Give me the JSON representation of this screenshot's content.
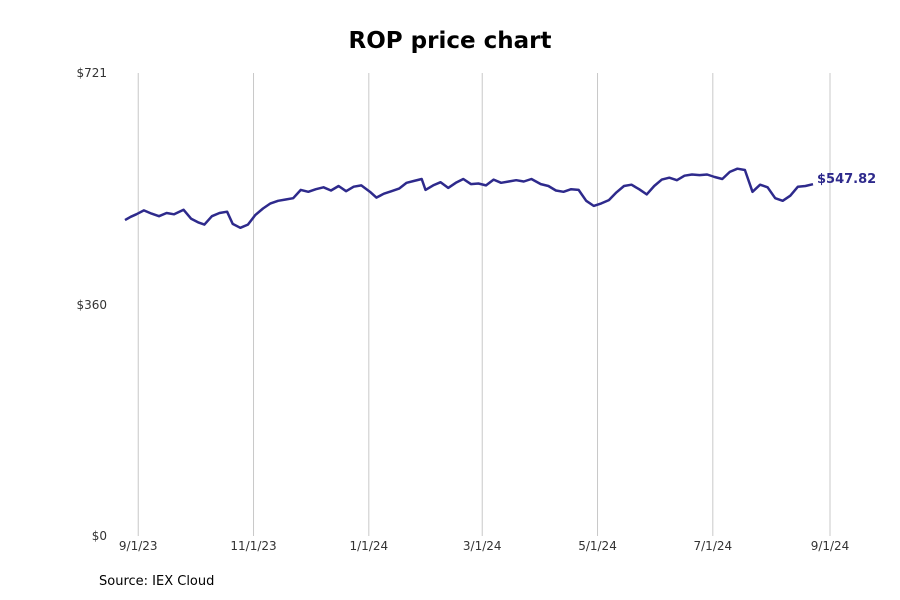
{
  "chart_data": {
    "type": "line",
    "title": "ROP price chart",
    "xlabel": "",
    "ylabel": "",
    "source": "Source: IEX Cloud",
    "x_range": [
      "2023-08-25",
      "2024-09-01"
    ],
    "ylim": [
      0,
      721
    ],
    "y_ticks": [
      {
        "value": 0,
        "label": "$0"
      },
      {
        "value": 360,
        "label": "$360"
      },
      {
        "value": 721,
        "label": "$721"
      }
    ],
    "x_ticks": [
      {
        "date": "2023-09-01",
        "label": "9/1/23"
      },
      {
        "date": "2023-11-01",
        "label": "11/1/23"
      },
      {
        "date": "2024-01-01",
        "label": "1/1/24"
      },
      {
        "date": "2024-03-01",
        "label": "3/1/24"
      },
      {
        "date": "2024-05-01",
        "label": "5/1/24"
      },
      {
        "date": "2024-07-01",
        "label": "7/1/24"
      },
      {
        "date": "2024-09-01",
        "label": "9/1/24"
      }
    ],
    "grid": "vertical",
    "line_color": "#2e2a8c",
    "last_value_label": "$547.82",
    "series": [
      {
        "points": [
          [
            "2023-08-25",
            492
          ],
          [
            "2023-08-28",
            497
          ],
          [
            "2023-08-31",
            501
          ],
          [
            "2023-09-04",
            507
          ],
          [
            "2023-09-08",
            502
          ],
          [
            "2023-09-12",
            498
          ],
          [
            "2023-09-16",
            503
          ],
          [
            "2023-09-20",
            501
          ],
          [
            "2023-09-25",
            508
          ],
          [
            "2023-09-29",
            494
          ],
          [
            "2023-10-03",
            488
          ],
          [
            "2023-10-06",
            485
          ],
          [
            "2023-10-10",
            498
          ],
          [
            "2023-10-14",
            503
          ],
          [
            "2023-10-18",
            505
          ],
          [
            "2023-10-21",
            486
          ],
          [
            "2023-10-25",
            480
          ],
          [
            "2023-10-29",
            485
          ],
          [
            "2023-11-02",
            500
          ],
          [
            "2023-11-06",
            510
          ],
          [
            "2023-11-10",
            518
          ],
          [
            "2023-11-14",
            522
          ],
          [
            "2023-11-18",
            524
          ],
          [
            "2023-11-22",
            526
          ],
          [
            "2023-11-26",
            539
          ],
          [
            "2023-11-30",
            536
          ],
          [
            "2023-12-04",
            540
          ],
          [
            "2023-12-08",
            543
          ],
          [
            "2023-12-12",
            538
          ],
          [
            "2023-12-16",
            545
          ],
          [
            "2023-12-20",
            537
          ],
          [
            "2023-12-24",
            544
          ],
          [
            "2023-12-28",
            546
          ],
          [
            "2024-01-02",
            535
          ],
          [
            "2024-01-05",
            527
          ],
          [
            "2024-01-09",
            533
          ],
          [
            "2024-01-13",
            537
          ],
          [
            "2024-01-17",
            541
          ],
          [
            "2024-01-21",
            550
          ],
          [
            "2024-01-25",
            553
          ],
          [
            "2024-01-29",
            556
          ],
          [
            "2024-01-31",
            539
          ],
          [
            "2024-02-04",
            546
          ],
          [
            "2024-02-08",
            551
          ],
          [
            "2024-02-12",
            542
          ],
          [
            "2024-02-16",
            550
          ],
          [
            "2024-02-20",
            556
          ],
          [
            "2024-02-24",
            548
          ],
          [
            "2024-02-28",
            549
          ],
          [
            "2024-03-03",
            546
          ],
          [
            "2024-03-07",
            555
          ],
          [
            "2024-03-11",
            550
          ],
          [
            "2024-03-15",
            552
          ],
          [
            "2024-03-19",
            554
          ],
          [
            "2024-03-23",
            552
          ],
          [
            "2024-03-27",
            556
          ],
          [
            "2024-04-01",
            548
          ],
          [
            "2024-04-05",
            545
          ],
          [
            "2024-04-09",
            538
          ],
          [
            "2024-04-13",
            536
          ],
          [
            "2024-04-17",
            540
          ],
          [
            "2024-04-21",
            539
          ],
          [
            "2024-04-25",
            522
          ],
          [
            "2024-04-29",
            514
          ],
          [
            "2024-05-03",
            518
          ],
          [
            "2024-05-07",
            523
          ],
          [
            "2024-05-11",
            535
          ],
          [
            "2024-05-15",
            545
          ],
          [
            "2024-05-19",
            547
          ],
          [
            "2024-05-23",
            540
          ],
          [
            "2024-05-27",
            532
          ],
          [
            "2024-05-31",
            545
          ],
          [
            "2024-06-04",
            555
          ],
          [
            "2024-06-08",
            558
          ],
          [
            "2024-06-12",
            554
          ],
          [
            "2024-06-16",
            561
          ],
          [
            "2024-06-20",
            563
          ],
          [
            "2024-06-24",
            562
          ],
          [
            "2024-06-28",
            563
          ],
          [
            "2024-07-02",
            559
          ],
          [
            "2024-07-06",
            556
          ],
          [
            "2024-07-10",
            567
          ],
          [
            "2024-07-14",
            572
          ],
          [
            "2024-07-18",
            570
          ],
          [
            "2024-07-22",
            536
          ],
          [
            "2024-07-26",
            547
          ],
          [
            "2024-07-30",
            543
          ],
          [
            "2024-08-03",
            526
          ],
          [
            "2024-08-07",
            522
          ],
          [
            "2024-08-11",
            530
          ],
          [
            "2024-08-15",
            544
          ],
          [
            "2024-08-19",
            545
          ],
          [
            "2024-08-23",
            547.82
          ]
        ]
      }
    ]
  }
}
